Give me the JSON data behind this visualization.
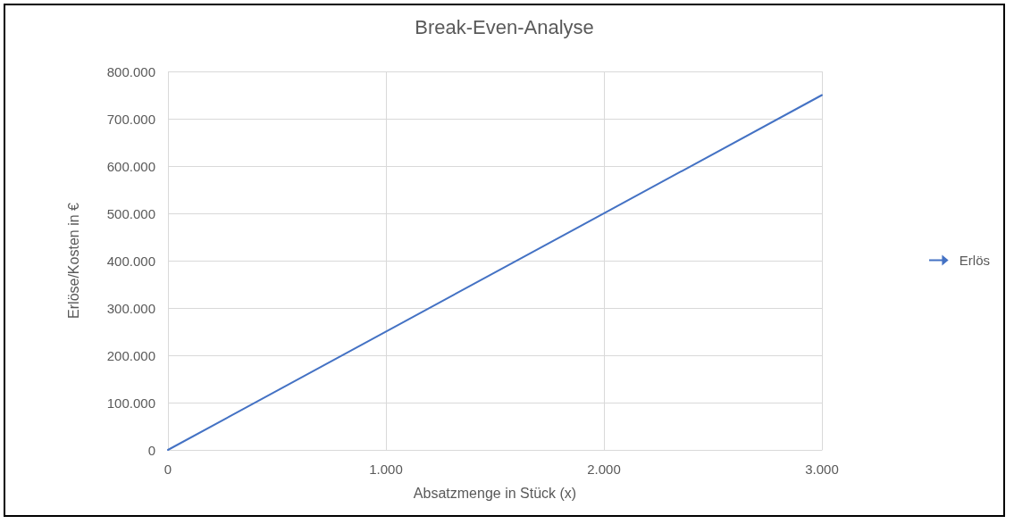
{
  "chart_data": {
    "type": "line",
    "title": "Break-Even-Analyse",
    "xlabel": "Absatzmenge in Stück (x)",
    "ylabel": "Erlöse/Kosten in €",
    "x": [
      0,
      3000
    ],
    "series": [
      {
        "name": "Erlös",
        "color": "#4472c4",
        "values": [
          0,
          750000
        ]
      }
    ],
    "xlim": [
      0,
      3000
    ],
    "xticks": [
      0,
      {
        "value": 1000,
        "label": "1.000"
      },
      {
        "value": 2000,
        "label": "2.000"
      },
      {
        "value": 3000,
        "label": "3.000"
      }
    ],
    "ylim": [
      0,
      800000
    ],
    "yticks": [
      0,
      {
        "value": 100000,
        "label": "100.000"
      },
      {
        "value": 200000,
        "label": "200.000"
      },
      {
        "value": 300000,
        "label": "300.000"
      },
      {
        "value": 400000,
        "label": "400.000"
      },
      {
        "value": 500000,
        "label": "500.000"
      },
      {
        "value": 600000,
        "label": "600.000"
      },
      {
        "value": 700000,
        "label": "700.000"
      },
      {
        "value": 800000,
        "label": "800.000"
      }
    ],
    "grid": true,
    "legend": "right",
    "marker": "none",
    "line_style": "solid"
  }
}
